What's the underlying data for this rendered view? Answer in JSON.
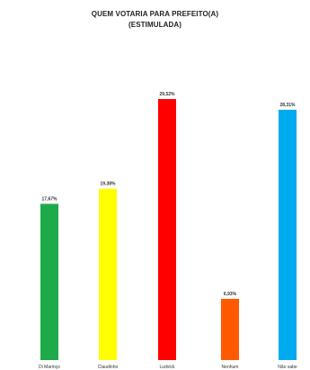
{
  "chart_data": {
    "type": "bar",
    "title_line1": "QUEM VOTARIA PARA PREFEITO(A)",
    "title_line2": "(ESTIMULADA)",
    "categories": [
      "Di Marinço",
      "Claudinho",
      "Ludvick",
      "Nenhum",
      "Não sabe"
    ],
    "values": [
      17.67,
      19.38,
      29.52,
      6.93,
      28.31
    ],
    "value_labels": [
      "17,67%",
      "19,38%",
      "29,52%",
      "6,93%",
      "28,31%"
    ],
    "colors": [
      "#1eaa4b",
      "#ffff00",
      "#ff0000",
      "#ff5a00",
      "#00aaee"
    ],
    "ylim": [
      0,
      30
    ],
    "grid": false,
    "legend": "none"
  }
}
